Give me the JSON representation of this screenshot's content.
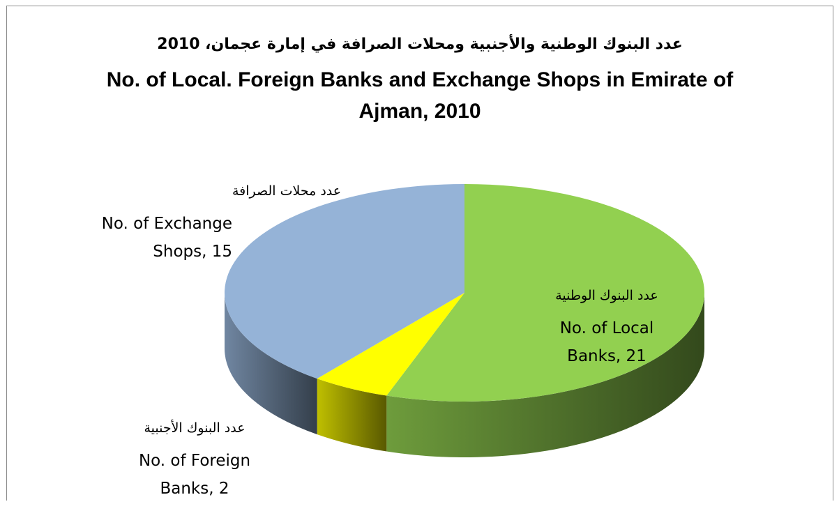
{
  "chart_data": {
    "type": "pie3d",
    "title_ar": "عدد البنوك الوطنية والأجنبية ومحلات الصرافة في إمارة عجمان، 2010",
    "title": "No. of Local. Foreign Banks and Exchange Shops in Emirate of Ajman, 2010",
    "categories_ar": [
      "عدد البنوك الوطنية",
      "عدد البنوك الأجنبية",
      "عدد محلات الصرافة"
    ],
    "categories": [
      "No. of Local Banks",
      "No. of Foreign Banks",
      "No. of Exchange Shops"
    ],
    "values": [
      21,
      2,
      15
    ],
    "colors": [
      "#92d050",
      "#ffff00",
      "#95b3d7"
    ]
  }
}
